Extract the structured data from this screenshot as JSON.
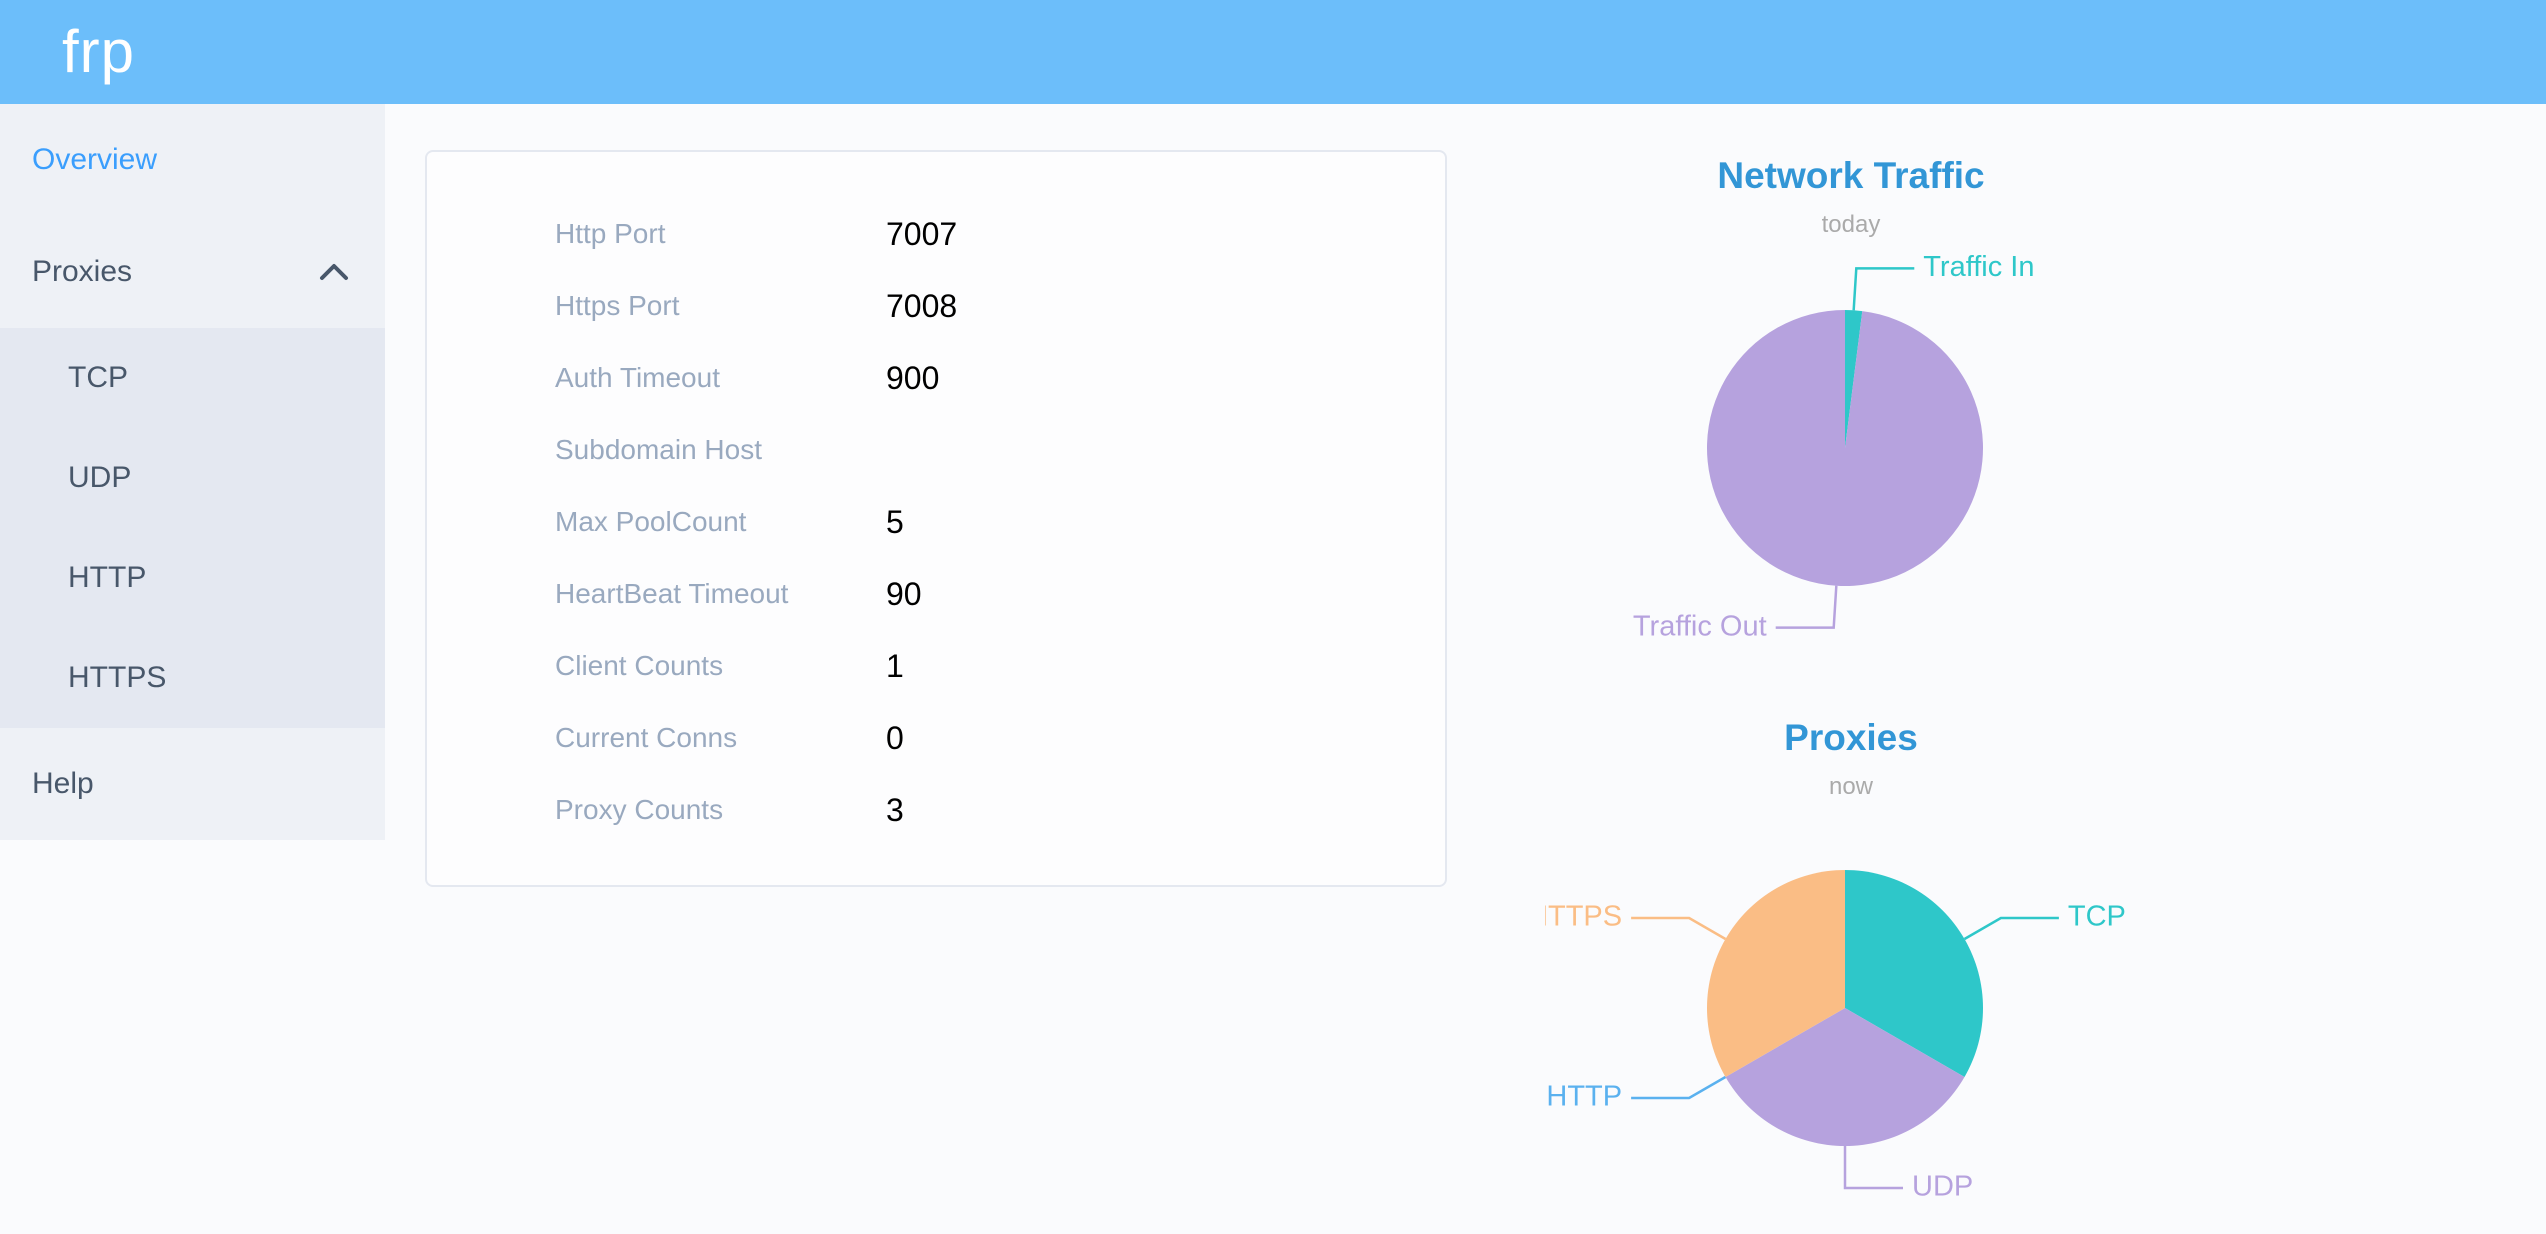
{
  "header": {
    "logo": "frp"
  },
  "sidebar": {
    "items": [
      {
        "label": "Overview",
        "active": true
      },
      {
        "label": "Proxies",
        "expanded": true,
        "icon": "chevron-up",
        "children": [
          {
            "label": "TCP"
          },
          {
            "label": "UDP"
          },
          {
            "label": "HTTP"
          },
          {
            "label": "HTTPS"
          }
        ]
      },
      {
        "label": "Help"
      }
    ]
  },
  "overview_card": {
    "rows": [
      {
        "label": "Http Port",
        "value": "7007"
      },
      {
        "label": "Https Port",
        "value": "7008"
      },
      {
        "label": "Auth Timeout",
        "value": "900"
      },
      {
        "label": "Subdomain Host",
        "value": ""
      },
      {
        "label": "Max PoolCount",
        "value": "5"
      },
      {
        "label": "HeartBeat Timeout",
        "value": "90"
      },
      {
        "label": "Client Counts",
        "value": "1"
      },
      {
        "label": "Current Conns",
        "value": "0"
      },
      {
        "label": "Proxy Counts",
        "value": "3"
      }
    ]
  },
  "chart_data": [
    {
      "type": "pie",
      "title": "Network Traffic",
      "subtitle": "today",
      "legend": "none",
      "label_position": "outside-with-leader-lines",
      "start_angle": "12 o'clock, clockwise",
      "values_note": "slice sizes estimated from arc angles (percent of circle)",
      "slices": [
        {
          "label": "Traffic In",
          "value": 2,
          "color": "#2ec7c9"
        },
        {
          "label": "Traffic Out",
          "value": 98,
          "color": "#b6a2de"
        }
      ]
    },
    {
      "type": "pie",
      "title": "Proxies",
      "subtitle": "now",
      "legend": "none",
      "label_position": "outside-with-leader-lines",
      "start_angle": "12 o'clock, clockwise",
      "values_note": "proxy counts by type; three equal slices, HTTP is zero",
      "slices": [
        {
          "label": "TCP",
          "value": 1,
          "color": "#2ec7c9"
        },
        {
          "label": "UDP",
          "value": 1,
          "color": "#b6a2de"
        },
        {
          "label": "HTTP",
          "value": 0,
          "color": "#5ab1ef"
        },
        {
          "label": "HTTPS",
          "value": 1,
          "color": "#fabd85"
        }
      ]
    }
  ],
  "colors": {
    "header_bg": "#6cbefa",
    "logo_text": "#ffffff",
    "sidebar_bg": "#eef1f6",
    "submenu_bg": "#e4e8f1",
    "menu_text": "#48576a",
    "menu_active_text": "#3a9efd",
    "page_bg": "#fafbfd",
    "card_bg": "#fdfdfe",
    "card_border": "#e4e8f0",
    "config_label_text": "#99a9bf",
    "config_value_text": "#000000",
    "chart_title_text": "#3296d6",
    "chart_subtitle_text": "#aaaaaa"
  }
}
